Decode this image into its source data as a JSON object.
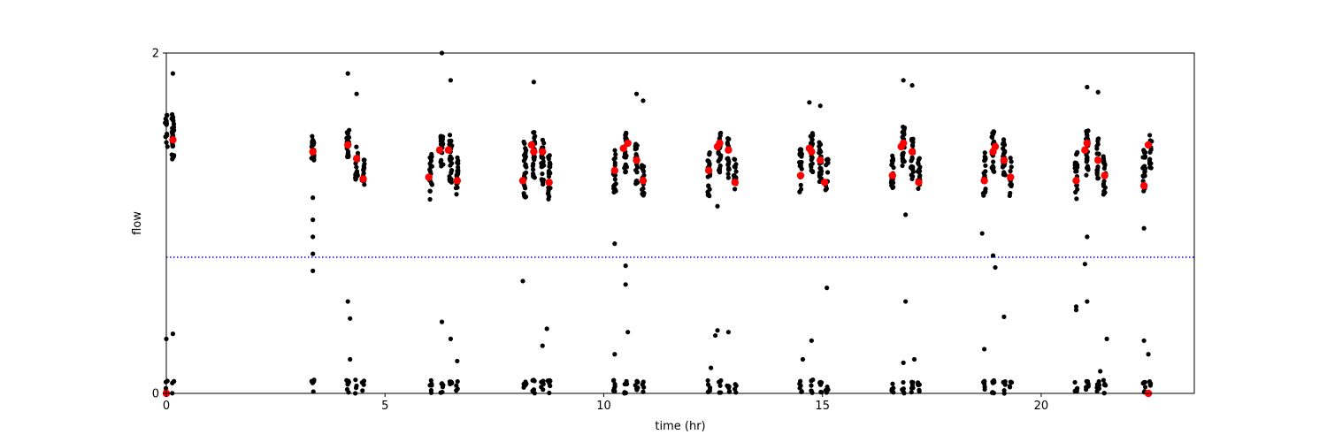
{
  "chart_data": {
    "type": "scatter",
    "title": "",
    "xlabel": "time (hr)",
    "ylabel": "flow",
    "xlim": [
      0,
      23.5
    ],
    "ylim": [
      0,
      2
    ],
    "xticks": [
      0,
      5,
      10,
      15,
      20
    ],
    "yticks": [
      0,
      2
    ],
    "grid": false,
    "legend": "none",
    "threshold_line": {
      "y": 0.8,
      "color": "#0000ff",
      "style": "dotted"
    },
    "colors": {
      "raw": "#000000",
      "highlight": "#ff0000",
      "threshold": "#0000ff"
    },
    "series": [
      {
        "role": "raw",
        "color": "#000000",
        "clusters": [
          {
            "x": 0.0,
            "center": 1.55,
            "spread": 0.1,
            "n": 14,
            "low_n": 4
          },
          {
            "x": 0.15,
            "center": 1.5,
            "spread": 0.14,
            "n": 30,
            "low_n": 4
          },
          {
            "x": 3.35,
            "center": 1.45,
            "spread": 0.08,
            "n": 18,
            "low_n": 5
          },
          {
            "x": 4.15,
            "center": 1.45,
            "spread": 0.1,
            "n": 22,
            "low_n": 7
          },
          {
            "x": 4.35,
            "center": 1.35,
            "spread": 0.1,
            "n": 18,
            "low_n": 4
          },
          {
            "x": 4.5,
            "center": 1.28,
            "spread": 0.1,
            "n": 18,
            "low_n": 4
          },
          {
            "x": 6.05,
            "center": 1.28,
            "spread": 0.14,
            "n": 20,
            "low_n": 6
          },
          {
            "x": 6.3,
            "center": 1.42,
            "spread": 0.1,
            "n": 22,
            "low_n": 6
          },
          {
            "x": 6.5,
            "center": 1.38,
            "spread": 0.14,
            "n": 26,
            "low_n": 6
          },
          {
            "x": 6.65,
            "center": 1.28,
            "spread": 0.12,
            "n": 18,
            "low_n": 4
          },
          {
            "x": 8.2,
            "center": 1.3,
            "spread": 0.18,
            "n": 26,
            "low_n": 8
          },
          {
            "x": 8.4,
            "center": 1.4,
            "spread": 0.14,
            "n": 26,
            "low_n": 6
          },
          {
            "x": 8.6,
            "center": 1.35,
            "spread": 0.14,
            "n": 24,
            "low_n": 6
          },
          {
            "x": 8.75,
            "center": 1.28,
            "spread": 0.14,
            "n": 22,
            "low_n": 6
          },
          {
            "x": 10.25,
            "center": 1.32,
            "spread": 0.14,
            "n": 24,
            "low_n": 8
          },
          {
            "x": 10.5,
            "center": 1.42,
            "spread": 0.12,
            "n": 26,
            "low_n": 6
          },
          {
            "x": 10.75,
            "center": 1.35,
            "spread": 0.12,
            "n": 22,
            "low_n": 6
          },
          {
            "x": 10.9,
            "center": 1.25,
            "spread": 0.1,
            "n": 16,
            "low_n": 4
          },
          {
            "x": 12.4,
            "center": 1.3,
            "spread": 0.14,
            "n": 22,
            "low_n": 6
          },
          {
            "x": 12.65,
            "center": 1.42,
            "spread": 0.12,
            "n": 26,
            "low_n": 6
          },
          {
            "x": 12.85,
            "center": 1.38,
            "spread": 0.12,
            "n": 22,
            "low_n": 6
          },
          {
            "x": 13.0,
            "center": 1.28,
            "spread": 0.1,
            "n": 16,
            "low_n": 4
          },
          {
            "x": 14.5,
            "center": 1.32,
            "spread": 0.14,
            "n": 22,
            "low_n": 6
          },
          {
            "x": 14.75,
            "center": 1.42,
            "spread": 0.12,
            "n": 24,
            "low_n": 6
          },
          {
            "x": 14.95,
            "center": 1.36,
            "spread": 0.12,
            "n": 22,
            "low_n": 6
          },
          {
            "x": 15.1,
            "center": 1.28,
            "spread": 0.1,
            "n": 14,
            "low_n": 4
          },
          {
            "x": 16.6,
            "center": 1.32,
            "spread": 0.12,
            "n": 20,
            "low_n": 6
          },
          {
            "x": 16.85,
            "center": 1.45,
            "spread": 0.12,
            "n": 24,
            "low_n": 6
          },
          {
            "x": 17.05,
            "center": 1.38,
            "spread": 0.12,
            "n": 22,
            "low_n": 6
          },
          {
            "x": 17.2,
            "center": 1.28,
            "spread": 0.12,
            "n": 18,
            "low_n": 6
          },
          {
            "x": 18.7,
            "center": 1.28,
            "spread": 0.14,
            "n": 22,
            "low_n": 6
          },
          {
            "x": 18.9,
            "center": 1.42,
            "spread": 0.12,
            "n": 24,
            "low_n": 8
          },
          {
            "x": 19.15,
            "center": 1.38,
            "spread": 0.12,
            "n": 22,
            "low_n": 6
          },
          {
            "x": 19.3,
            "center": 1.28,
            "spread": 0.12,
            "n": 18,
            "low_n": 4
          },
          {
            "x": 20.8,
            "center": 1.28,
            "spread": 0.14,
            "n": 22,
            "low_n": 6
          },
          {
            "x": 21.05,
            "center": 1.42,
            "spread": 0.14,
            "n": 24,
            "low_n": 8
          },
          {
            "x": 21.3,
            "center": 1.38,
            "spread": 0.12,
            "n": 22,
            "low_n": 6
          },
          {
            "x": 21.45,
            "center": 1.28,
            "spread": 0.12,
            "n": 18,
            "low_n": 6
          },
          {
            "x": 22.35,
            "center": 1.3,
            "spread": 0.14,
            "n": 24,
            "low_n": 6
          },
          {
            "x": 22.5,
            "center": 1.42,
            "spread": 0.1,
            "n": 14,
            "low_n": 4
          }
        ],
        "outliers": [
          {
            "x": 0.15,
            "y": 1.88
          },
          {
            "x": 0.0,
            "y": 0.32
          },
          {
            "x": 0.15,
            "y": 0.35
          },
          {
            "x": 3.35,
            "y": 1.15
          },
          {
            "x": 3.35,
            "y": 1.02
          },
          {
            "x": 3.35,
            "y": 0.92
          },
          {
            "x": 3.35,
            "y": 0.82
          },
          {
            "x": 3.35,
            "y": 0.72
          },
          {
            "x": 4.15,
            "y": 1.88
          },
          {
            "x": 4.15,
            "y": 0.54
          },
          {
            "x": 4.2,
            "y": 0.44
          },
          {
            "x": 4.35,
            "y": 1.76
          },
          {
            "x": 4.2,
            "y": 0.2
          },
          {
            "x": 6.3,
            "y": 2.0
          },
          {
            "x": 6.5,
            "y": 1.84
          },
          {
            "x": 6.3,
            "y": 0.42
          },
          {
            "x": 6.5,
            "y": 0.32
          },
          {
            "x": 6.65,
            "y": 0.19
          },
          {
            "x": 8.4,
            "y": 1.83
          },
          {
            "x": 8.15,
            "y": 0.66
          },
          {
            "x": 8.7,
            "y": 0.38
          },
          {
            "x": 8.6,
            "y": 0.28
          },
          {
            "x": 10.25,
            "y": 0.88
          },
          {
            "x": 10.5,
            "y": 0.75
          },
          {
            "x": 10.5,
            "y": 0.64
          },
          {
            "x": 10.75,
            "y": 1.76
          },
          {
            "x": 10.9,
            "y": 1.72
          },
          {
            "x": 10.55,
            "y": 0.36
          },
          {
            "x": 10.25,
            "y": 0.23
          },
          {
            "x": 12.6,
            "y": 0.37
          },
          {
            "x": 12.85,
            "y": 0.36
          },
          {
            "x": 12.55,
            "y": 0.34
          },
          {
            "x": 12.6,
            "y": 1.1
          },
          {
            "x": 12.45,
            "y": 0.15
          },
          {
            "x": 14.7,
            "y": 1.71
          },
          {
            "x": 14.95,
            "y": 1.69
          },
          {
            "x": 15.1,
            "y": 0.62
          },
          {
            "x": 14.75,
            "y": 0.31
          },
          {
            "x": 14.55,
            "y": 0.2
          },
          {
            "x": 16.85,
            "y": 1.84
          },
          {
            "x": 17.05,
            "y": 1.81
          },
          {
            "x": 16.9,
            "y": 0.54
          },
          {
            "x": 16.9,
            "y": 1.05
          },
          {
            "x": 16.85,
            "y": 0.18
          },
          {
            "x": 17.1,
            "y": 0.2
          },
          {
            "x": 18.65,
            "y": 0.94
          },
          {
            "x": 18.9,
            "y": 0.81
          },
          {
            "x": 18.95,
            "y": 0.74
          },
          {
            "x": 19.15,
            "y": 0.45
          },
          {
            "x": 18.7,
            "y": 0.26
          },
          {
            "x": 21.05,
            "y": 1.8
          },
          {
            "x": 21.3,
            "y": 1.77
          },
          {
            "x": 21.05,
            "y": 0.92
          },
          {
            "x": 21.0,
            "y": 0.76
          },
          {
            "x": 20.8,
            "y": 0.51
          },
          {
            "x": 20.8,
            "y": 0.49
          },
          {
            "x": 21.05,
            "y": 0.54
          },
          {
            "x": 21.5,
            "y": 0.32
          },
          {
            "x": 21.35,
            "y": 0.13
          },
          {
            "x": 22.35,
            "y": 0.97
          },
          {
            "x": 22.35,
            "y": 0.31
          },
          {
            "x": 22.45,
            "y": 0.23
          }
        ]
      },
      {
        "role": "highlight",
        "color": "#ff0000",
        "points": [
          {
            "x": 0.15,
            "y": 1.49
          },
          {
            "x": 3.35,
            "y": 1.42
          },
          {
            "x": 4.15,
            "y": 1.46
          },
          {
            "x": 4.35,
            "y": 1.38
          },
          {
            "x": 4.5,
            "y": 1.26
          },
          {
            "x": 6.0,
            "y": 1.27
          },
          {
            "x": 6.25,
            "y": 1.43
          },
          {
            "x": 6.45,
            "y": 1.43
          },
          {
            "x": 6.65,
            "y": 1.25
          },
          {
            "x": 8.15,
            "y": 1.25
          },
          {
            "x": 8.35,
            "y": 1.46
          },
          {
            "x": 8.4,
            "y": 1.42
          },
          {
            "x": 8.6,
            "y": 1.42
          },
          {
            "x": 8.75,
            "y": 1.24
          },
          {
            "x": 10.25,
            "y": 1.31
          },
          {
            "x": 10.45,
            "y": 1.44
          },
          {
            "x": 10.55,
            "y": 1.47
          },
          {
            "x": 10.75,
            "y": 1.37
          },
          {
            "x": 10.9,
            "y": 1.25
          },
          {
            "x": 12.4,
            "y": 1.31
          },
          {
            "x": 12.6,
            "y": 1.45
          },
          {
            "x": 12.65,
            "y": 1.47
          },
          {
            "x": 12.85,
            "y": 1.43
          },
          {
            "x": 13.0,
            "y": 1.24
          },
          {
            "x": 14.5,
            "y": 1.28
          },
          {
            "x": 14.7,
            "y": 1.44
          },
          {
            "x": 14.75,
            "y": 1.42
          },
          {
            "x": 14.95,
            "y": 1.37
          },
          {
            "x": 15.05,
            "y": 1.24
          },
          {
            "x": 16.6,
            "y": 1.28
          },
          {
            "x": 16.8,
            "y": 1.45
          },
          {
            "x": 16.85,
            "y": 1.47
          },
          {
            "x": 17.05,
            "y": 1.42
          },
          {
            "x": 17.2,
            "y": 1.24
          },
          {
            "x": 18.7,
            "y": 1.25
          },
          {
            "x": 18.9,
            "y": 1.42
          },
          {
            "x": 18.95,
            "y": 1.45
          },
          {
            "x": 19.15,
            "y": 1.37
          },
          {
            "x": 19.3,
            "y": 1.27
          },
          {
            "x": 20.8,
            "y": 1.25
          },
          {
            "x": 21.0,
            "y": 1.43
          },
          {
            "x": 21.05,
            "y": 1.47
          },
          {
            "x": 21.3,
            "y": 1.37
          },
          {
            "x": 21.45,
            "y": 1.28
          },
          {
            "x": 22.35,
            "y": 1.22
          },
          {
            "x": 22.45,
            "y": 1.46
          },
          {
            "x": 0.0,
            "y": 0.0
          },
          {
            "x": 22.45,
            "y": 0.0
          }
        ]
      }
    ]
  }
}
